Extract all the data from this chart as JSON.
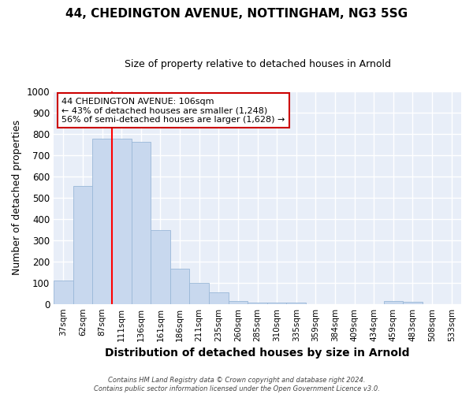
{
  "title": "44, CHEDINGTON AVENUE, NOTTINGHAM, NG3 5SG",
  "subtitle": "Size of property relative to detached houses in Arnold",
  "xlabel": "Distribution of detached houses by size in Arnold",
  "ylabel": "Number of detached properties",
  "categories": [
    "37sqm",
    "62sqm",
    "87sqm",
    "111sqm",
    "136sqm",
    "161sqm",
    "186sqm",
    "211sqm",
    "235sqm",
    "260sqm",
    "285sqm",
    "310sqm",
    "335sqm",
    "359sqm",
    "384sqm",
    "409sqm",
    "434sqm",
    "459sqm",
    "483sqm",
    "508sqm",
    "533sqm"
  ],
  "values": [
    110,
    555,
    775,
    775,
    760,
    345,
    165,
    100,
    55,
    15,
    5,
    5,
    5,
    0,
    0,
    0,
    0,
    15,
    10,
    0,
    0
  ],
  "bar_color": "#c8d8ee",
  "bar_edge_color": "#9ab8d8",
  "red_line_index": 3,
  "ylim": [
    0,
    1000
  ],
  "yticks": [
    0,
    100,
    200,
    300,
    400,
    500,
    600,
    700,
    800,
    900,
    1000
  ],
  "annotation_text": "44 CHEDINGTON AVENUE: 106sqm\n← 43% of detached houses are smaller (1,248)\n56% of semi-detached houses are larger (1,628) →",
  "annotation_box_color": "#ffffff",
  "annotation_box_edge": "#cc0000",
  "footer_text": "Contains HM Land Registry data © Crown copyright and database right 2024.\nContains public sector information licensed under the Open Government Licence v3.0.",
  "background_color": "#ffffff",
  "plot_bg_color": "#e8eef8",
  "grid_color": "#ffffff",
  "title_fontsize": 11,
  "subtitle_fontsize": 9,
  "xlabel_fontsize": 10,
  "ylabel_fontsize": 9
}
